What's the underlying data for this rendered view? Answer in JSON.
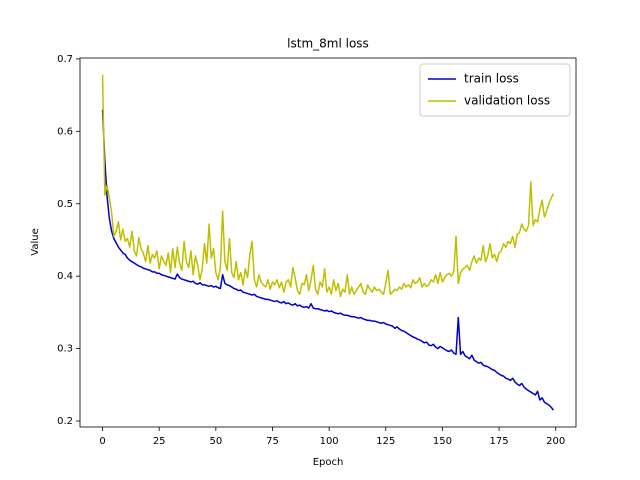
{
  "chart_data": {
    "type": "line",
    "title": "lstm_8ml loss",
    "x_label": "Epoch",
    "y_label": "Value",
    "x": [
      0,
      1,
      2,
      3,
      4,
      5,
      6,
      7,
      8,
      9,
      10,
      11,
      12,
      13,
      14,
      15,
      16,
      17,
      18,
      19,
      20,
      21,
      22,
      23,
      24,
      25,
      26,
      27,
      28,
      29,
      30,
      31,
      32,
      33,
      34,
      35,
      36,
      37,
      38,
      39,
      40,
      41,
      42,
      43,
      44,
      45,
      46,
      47,
      48,
      49,
      50,
      51,
      52,
      53,
      54,
      55,
      56,
      57,
      58,
      59,
      60,
      61,
      62,
      63,
      64,
      65,
      66,
      67,
      68,
      69,
      70,
      71,
      72,
      73,
      74,
      75,
      76,
      77,
      78,
      79,
      80,
      81,
      82,
      83,
      84,
      85,
      86,
      87,
      88,
      89,
      90,
      91,
      92,
      93,
      94,
      95,
      96,
      97,
      98,
      99,
      100,
      101,
      102,
      103,
      104,
      105,
      106,
      107,
      108,
      109,
      110,
      111,
      112,
      113,
      114,
      115,
      116,
      117,
      118,
      119,
      120,
      121,
      122,
      123,
      124,
      125,
      126,
      127,
      128,
      129,
      130,
      131,
      132,
      133,
      134,
      135,
      136,
      137,
      138,
      139,
      140,
      141,
      142,
      143,
      144,
      145,
      146,
      147,
      148,
      149,
      150,
      151,
      152,
      153,
      154,
      155,
      156,
      157,
      158,
      159,
      160,
      161,
      162,
      163,
      164,
      165,
      166,
      167,
      168,
      169,
      170,
      171,
      172,
      173,
      174,
      175,
      176,
      177,
      178,
      179,
      180,
      181,
      182,
      183,
      184,
      185,
      186,
      187,
      188,
      189,
      190,
      191,
      192,
      193,
      194,
      195,
      196,
      197,
      198,
      199
    ],
    "series": [
      {
        "name": "train loss",
        "color": "#0000cd",
        "values": [
          0.63,
          0.56,
          0.51,
          0.48,
          0.462,
          0.452,
          0.446,
          0.44,
          0.436,
          0.432,
          0.43,
          0.425,
          0.422,
          0.42,
          0.418,
          0.416,
          0.414,
          0.413,
          0.411,
          0.41,
          0.409,
          0.408,
          0.406,
          0.406,
          0.404,
          0.404,
          0.402,
          0.401,
          0.4,
          0.399,
          0.398,
          0.397,
          0.396,
          0.403,
          0.398,
          0.396,
          0.395,
          0.394,
          0.393,
          0.392,
          0.393,
          0.39,
          0.389,
          0.391,
          0.388,
          0.388,
          0.387,
          0.386,
          0.387,
          0.385,
          0.386,
          0.384,
          0.383,
          0.402,
          0.39,
          0.388,
          0.387,
          0.385,
          0.383,
          0.382,
          0.38,
          0.381,
          0.378,
          0.377,
          0.376,
          0.375,
          0.374,
          0.375,
          0.372,
          0.371,
          0.37,
          0.369,
          0.368,
          0.368,
          0.367,
          0.366,
          0.365,
          0.366,
          0.364,
          0.363,
          0.365,
          0.362,
          0.363,
          0.361,
          0.36,
          0.362,
          0.359,
          0.36,
          0.358,
          0.357,
          0.358,
          0.356,
          0.362,
          0.356,
          0.355,
          0.355,
          0.354,
          0.353,
          0.352,
          0.353,
          0.351,
          0.352,
          0.35,
          0.349,
          0.348,
          0.349,
          0.347,
          0.346,
          0.346,
          0.345,
          0.344,
          0.344,
          0.343,
          0.342,
          0.343,
          0.341,
          0.34,
          0.339,
          0.339,
          0.338,
          0.338,
          0.337,
          0.336,
          0.335,
          0.336,
          0.334,
          0.333,
          0.332,
          0.331,
          0.328,
          0.33,
          0.327,
          0.325,
          0.324,
          0.322,
          0.32,
          0.318,
          0.316,
          0.315,
          0.313,
          0.312,
          0.31,
          0.308,
          0.309,
          0.305,
          0.304,
          0.306,
          0.302,
          0.3,
          0.303,
          0.301,
          0.299,
          0.297,
          0.296,
          0.298,
          0.294,
          0.292,
          0.343,
          0.292,
          0.296,
          0.29,
          0.288,
          0.286,
          0.291,
          0.284,
          0.282,
          0.28,
          0.281,
          0.277,
          0.276,
          0.275,
          0.273,
          0.271,
          0.27,
          0.267,
          0.265,
          0.263,
          0.262,
          0.259,
          0.258,
          0.256,
          0.259,
          0.254,
          0.251,
          0.249,
          0.252,
          0.247,
          0.244,
          0.242,
          0.24,
          0.238,
          0.236,
          0.241,
          0.229,
          0.232,
          0.226,
          0.224,
          0.222,
          0.219,
          0.215
        ]
      },
      {
        "name": "validation loss",
        "color": "#bfbf00",
        "values": [
          0.678,
          0.512,
          0.525,
          0.508,
          0.488,
          0.455,
          0.462,
          0.475,
          0.45,
          0.465,
          0.448,
          0.452,
          0.44,
          0.462,
          0.435,
          0.428,
          0.453,
          0.438,
          0.432,
          0.42,
          0.442,
          0.418,
          0.43,
          0.425,
          0.435,
          0.41,
          0.428,
          0.42,
          0.415,
          0.432,
          0.405,
          0.438,
          0.412,
          0.44,
          0.418,
          0.408,
          0.448,
          0.42,
          0.412,
          0.435,
          0.402,
          0.428,
          0.415,
          0.395,
          0.41,
          0.445,
          0.418,
          0.472,
          0.425,
          0.438,
          0.405,
          0.395,
          0.412,
          0.49,
          0.42,
          0.408,
          0.452,
          0.405,
          0.398,
          0.42,
          0.395,
          0.405,
          0.388,
          0.41,
          0.398,
          0.43,
          0.448,
          0.395,
          0.385,
          0.402,
          0.392,
          0.388,
          0.385,
          0.395,
          0.382,
          0.392,
          0.388,
          0.395,
          0.384,
          0.392,
          0.378,
          0.392,
          0.395,
          0.385,
          0.412,
          0.398,
          0.38,
          0.375,
          0.39,
          0.388,
          0.402,
          0.38,
          0.395,
          0.415,
          0.382,
          0.375,
          0.392,
          0.385,
          0.41,
          0.378,
          0.385,
          0.375,
          0.395,
          0.38,
          0.39,
          0.372,
          0.382,
          0.378,
          0.402,
          0.375,
          0.385,
          0.375,
          0.38,
          0.385,
          0.39,
          0.378,
          0.375,
          0.388,
          0.382,
          0.378,
          0.385,
          0.38,
          0.382,
          0.378,
          0.375,
          0.39,
          0.408,
          0.375,
          0.378,
          0.382,
          0.38,
          0.385,
          0.382,
          0.39,
          0.385,
          0.388,
          0.384,
          0.395,
          0.39,
          0.392,
          0.398,
          0.385,
          0.39,
          0.386,
          0.388,
          0.395,
          0.392,
          0.402,
          0.39,
          0.405,
          0.392,
          0.398,
          0.402,
          0.404,
          0.4,
          0.406,
          0.455,
          0.39,
          0.405,
          0.41,
          0.412,
          0.415,
          0.408,
          0.42,
          0.428,
          0.418,
          0.425,
          0.422,
          0.442,
          0.42,
          0.428,
          0.445,
          0.425,
          0.43,
          0.42,
          0.432,
          0.435,
          0.445,
          0.44,
          0.448,
          0.445,
          0.455,
          0.44,
          0.458,
          0.46,
          0.472,
          0.465,
          0.462,
          0.47,
          0.53,
          0.47,
          0.478,
          0.475,
          0.492,
          0.505,
          0.482,
          0.49,
          0.5,
          0.508,
          0.514
        ]
      }
    ],
    "xlim": [
      -9.95,
      208.95
    ],
    "ylim": [
      0.19175,
      0.70125
    ],
    "xticks": [
      0,
      25,
      50,
      75,
      100,
      125,
      150,
      175,
      200
    ],
    "yticks": [
      0.2,
      0.3,
      0.4,
      0.5,
      0.6,
      0.7
    ],
    "legend": "upper right"
  }
}
